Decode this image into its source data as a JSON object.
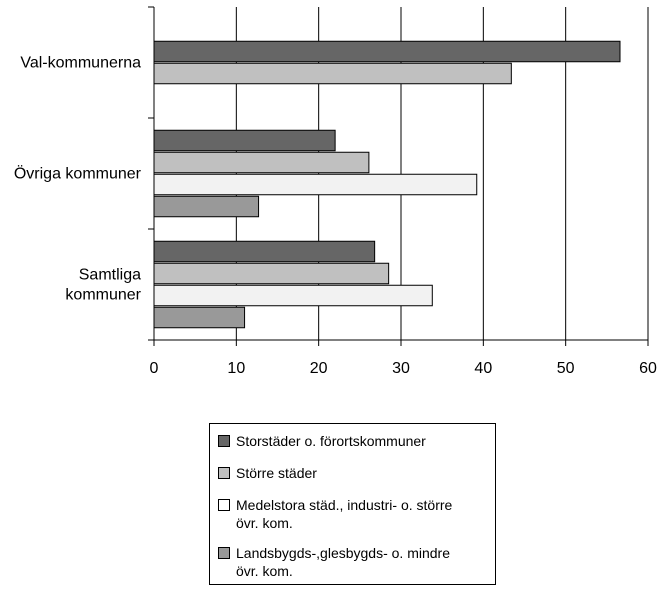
{
  "chart_data": {
    "type": "bar",
    "orientation": "horizontal",
    "categories": [
      "Val-kommunerna",
      "Övriga kommuner",
      "Samtliga kommuner"
    ],
    "category_label_lines": [
      [
        "Val-kommunerna"
      ],
      [
        "Övriga kommuner"
      ],
      [
        "Samtliga",
        "kommuner"
      ]
    ],
    "series": [
      {
        "name": "Storstäder o. förortskommuner",
        "color": "#666666",
        "values": [
          56.6,
          22.0,
          26.8
        ]
      },
      {
        "name": "Större städer",
        "color": "#c0c0c0",
        "values": [
          43.4,
          26.1,
          28.5
        ]
      },
      {
        "name": "Medelstora städ., industri- o. större övr. kom.",
        "color": "#f2f2f2",
        "values": [
          null,
          39.2,
          33.8
        ]
      },
      {
        "name": "Landsbygds-,glesbygds- o. mindre övr. kom.",
        "color": "#999999",
        "values": [
          null,
          12.7,
          11.0
        ]
      }
    ],
    "xlim": [
      0,
      60
    ],
    "xticks": [
      0,
      10,
      20,
      30,
      40,
      50,
      60
    ],
    "grid": "vertical",
    "legend": "bottom-center",
    "title": "",
    "xlabel": "",
    "ylabel": ""
  },
  "legend": {
    "items": [
      {
        "lines": [
          "Storstäder o. förortskommuner"
        ],
        "color": "#666666"
      },
      {
        "lines": [
          "Större städer"
        ],
        "color": "#c0c0c0"
      },
      {
        "lines": [
          "Medelstora städ., industri- o. större",
          "övr. kom."
        ],
        "color": "#ffffff"
      },
      {
        "lines": [
          "Landsbygds-,glesbygds- o. mindre",
          "övr. kom."
        ],
        "color": "#999999"
      }
    ]
  }
}
